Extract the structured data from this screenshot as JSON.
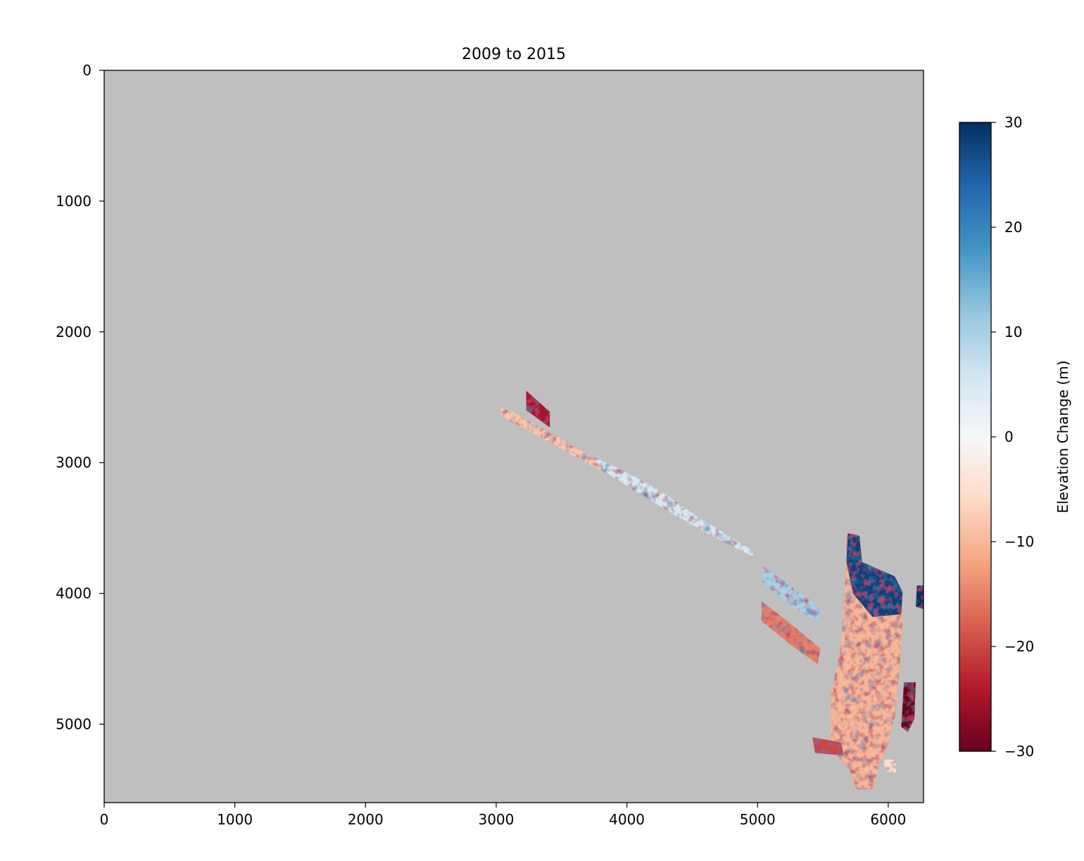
{
  "chart_data": {
    "type": "heatmap",
    "title": "2009 to 2015",
    "xlabel": "",
    "ylabel": "",
    "xlim": [
      0,
      6270
    ],
    "ylim": [
      5600,
      0
    ],
    "xticks": [
      0,
      1000,
      2000,
      3000,
      4000,
      5000,
      6000
    ],
    "xtick_labels": [
      "0",
      "1000",
      "2000",
      "3000",
      "4000",
      "5000",
      "6000"
    ],
    "yticks": [
      0,
      1000,
      2000,
      3000,
      4000,
      5000
    ],
    "ytick_labels": [
      "0",
      "1000",
      "2000",
      "3000",
      "4000",
      "5000"
    ],
    "grid": false,
    "background_color": "#bfbfbf",
    "colormap": "RdBu",
    "colorbar": {
      "label": "Elevation Change (m)",
      "range": [
        -30,
        30
      ],
      "ticks": [
        30,
        20,
        10,
        0,
        -10,
        -20,
        -30
      ],
      "tick_labels": [
        "30",
        "20",
        "10",
        "0",
        "−10",
        "−20",
        "−30"
      ],
      "placement": "right"
    },
    "data_regions": [
      {
        "label": "upper-left strip",
        "polygon": [
          [
            3040,
            2580
          ],
          [
            3140,
            2620
          ],
          [
            3400,
            2760
          ],
          [
            3700,
            2940
          ],
          [
            3950,
            3090
          ],
          [
            3900,
            3110
          ],
          [
            3650,
            2980
          ],
          [
            3350,
            2810
          ],
          [
            3100,
            2680
          ],
          [
            3020,
            2620
          ]
        ],
        "dominant_value": -8
      },
      {
        "label": "small parallelogram",
        "polygon": [
          [
            3230,
            2450
          ],
          [
            3410,
            2610
          ],
          [
            3410,
            2730
          ],
          [
            3230,
            2600
          ]
        ],
        "dominant_value": -25
      },
      {
        "label": "central strip",
        "polygon": [
          [
            3750,
            2960
          ],
          [
            3950,
            3050
          ],
          [
            4250,
            3210
          ],
          [
            4550,
            3420
          ],
          [
            4850,
            3600
          ],
          [
            5000,
            3700
          ],
          [
            4950,
            3710
          ],
          [
            4650,
            3560
          ],
          [
            4350,
            3390
          ],
          [
            4050,
            3210
          ],
          [
            3800,
            3050
          ]
        ],
        "dominant_value": 5
      },
      {
        "label": "lower strip 1",
        "polygon": [
          [
            5040,
            3790
          ],
          [
            5250,
            3940
          ],
          [
            5480,
            4110
          ],
          [
            5460,
            4220
          ],
          [
            5250,
            4090
          ],
          [
            5040,
            3920
          ]
        ],
        "dominant_value": 10
      },
      {
        "label": "lower strip 2",
        "polygon": [
          [
            5030,
            4060
          ],
          [
            5250,
            4230
          ],
          [
            5480,
            4420
          ],
          [
            5460,
            4540
          ],
          [
            5250,
            4390
          ],
          [
            5030,
            4210
          ]
        ],
        "dominant_value": -15
      },
      {
        "label": "main glacier body",
        "polygon": [
          [
            5680,
            3540
          ],
          [
            5760,
            3540
          ],
          [
            5800,
            3780
          ],
          [
            6040,
            3870
          ],
          [
            6100,
            3980
          ],
          [
            6110,
            4260
          ],
          [
            6080,
            4650
          ],
          [
            6060,
            4900
          ],
          [
            6000,
            5150
          ],
          [
            5930,
            5320
          ],
          [
            5880,
            5500
          ],
          [
            5760,
            5500
          ],
          [
            5700,
            5350
          ],
          [
            5560,
            5180
          ],
          [
            5560,
            4780
          ],
          [
            5640,
            4400
          ],
          [
            5670,
            3950
          ]
        ],
        "dominant_value": -10
      },
      {
        "label": "upper blue patch",
        "polygon": [
          [
            5690,
            3540
          ],
          [
            5780,
            3560
          ],
          [
            5800,
            3760
          ],
          [
            6050,
            3870
          ],
          [
            6110,
            3990
          ],
          [
            6100,
            4160
          ],
          [
            5880,
            4180
          ],
          [
            5730,
            4000
          ],
          [
            5680,
            3760
          ]
        ],
        "dominant_value": 28
      },
      {
        "label": "right red lobe",
        "polygon": [
          [
            6120,
            4680
          ],
          [
            6210,
            4680
          ],
          [
            6200,
            4960
          ],
          [
            6150,
            5060
          ],
          [
            6100,
            5020
          ]
        ],
        "dominant_value": -30
      },
      {
        "label": "right edge blue",
        "polygon": [
          [
            6220,
            3940
          ],
          [
            6270,
            3940
          ],
          [
            6270,
            4120
          ],
          [
            6210,
            4100
          ]
        ],
        "dominant_value": 30
      },
      {
        "label": "small left blob",
        "polygon": [
          [
            5420,
            5100
          ],
          [
            5640,
            5140
          ],
          [
            5660,
            5240
          ],
          [
            5440,
            5220
          ]
        ],
        "dominant_value": -20
      },
      {
        "label": "small lower blob",
        "polygon": [
          [
            5970,
            5270
          ],
          [
            6060,
            5270
          ],
          [
            6060,
            5370
          ],
          [
            5970,
            5360
          ]
        ],
        "dominant_value": -5
      }
    ]
  }
}
